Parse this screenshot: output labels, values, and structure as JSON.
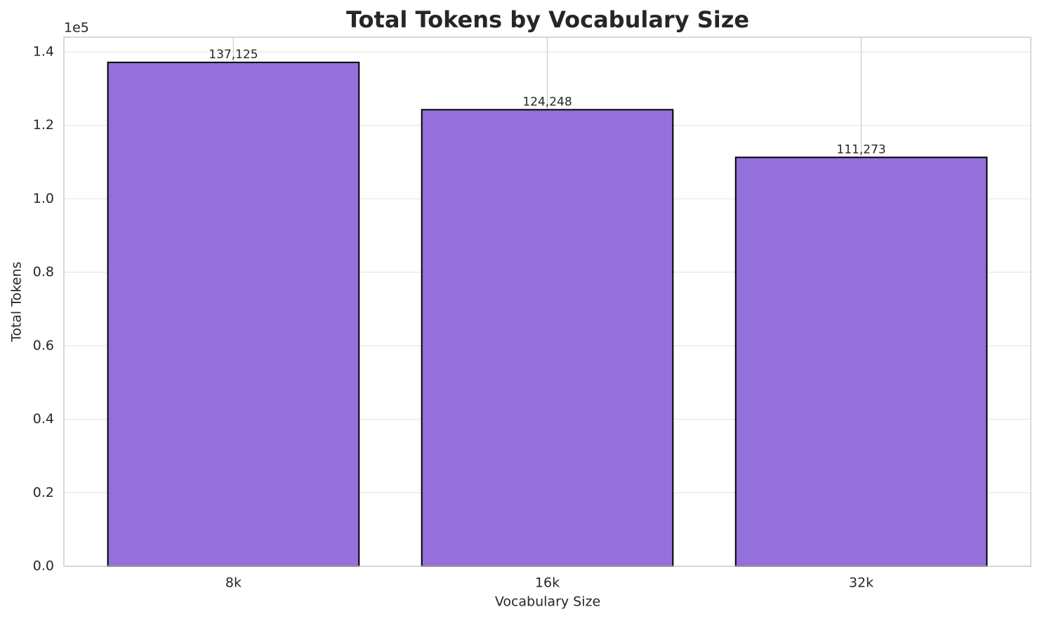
{
  "chart_data": {
    "type": "bar",
    "title": "Total Tokens by Vocabulary Size",
    "x_label": "Vocabulary Size",
    "y_label": "Total Tokens",
    "y_offset_label": "1e5",
    "categories": [
      "8k",
      "16k",
      "32k"
    ],
    "values": [
      137125,
      124248,
      111273
    ],
    "value_labels": [
      "137,125",
      "124,248",
      "111,273"
    ],
    "color": "#9370db",
    "ylim": [
      0,
      143981
    ],
    "yticks": [
      {
        "value": 0,
        "label": "0.0"
      },
      {
        "value": 20000,
        "label": "0.2"
      },
      {
        "value": 40000,
        "label": "0.4"
      },
      {
        "value": 60000,
        "label": "0.6"
      },
      {
        "value": 80000,
        "label": "0.8"
      },
      {
        "value": 100000,
        "label": "1.0"
      },
      {
        "value": 120000,
        "label": "1.2"
      },
      {
        "value": 140000,
        "label": "1.4"
      }
    ],
    "grid": true
  }
}
